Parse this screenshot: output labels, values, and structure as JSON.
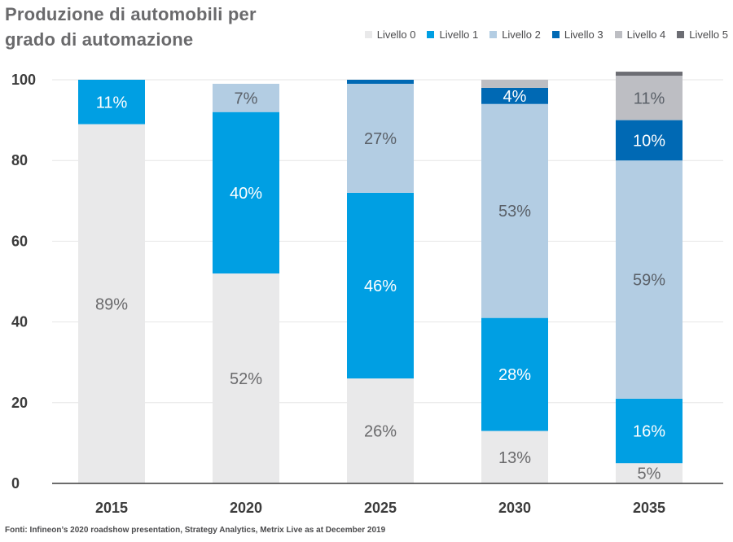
{
  "chart_data": {
    "type": "bar",
    "stacked": true,
    "title": "Produzione di automobili per\ngrado di automazione",
    "categories": [
      "2015",
      "2020",
      "2025",
      "2030",
      "2035"
    ],
    "series": [
      {
        "name": "Livello 0",
        "color": "#e9e9ea",
        "label_color": "#6a6a6c",
        "values": [
          89,
          52,
          26,
          13,
          5
        ]
      },
      {
        "name": "Livello 1",
        "color": "#009fe3",
        "label_color": "#ffffff",
        "values": [
          11,
          40,
          46,
          28,
          16
        ]
      },
      {
        "name": "Livello 2",
        "color": "#b3cde3",
        "label_color": "#5a6068",
        "values": [
          0,
          7,
          27,
          53,
          59
        ]
      },
      {
        "name": "Livello 3",
        "color": "#0069b4",
        "label_color": "#ffffff",
        "values": [
          0,
          0,
          1,
          4,
          10
        ]
      },
      {
        "name": "Livello 4",
        "color": "#bdbec3",
        "label_color": "#5a6068",
        "values": [
          0,
          0,
          0,
          2,
          11
        ]
      },
      {
        "name": "Livello 5",
        "color": "#6c6d73",
        "label_color": "#ffffff",
        "values": [
          0,
          0,
          0,
          0,
          1
        ]
      }
    ],
    "data_labels": [
      [
        "89%",
        "11%",
        "",
        "",
        "",
        ""
      ],
      [
        "52%",
        "40%",
        "7%",
        "",
        "",
        ""
      ],
      [
        "26%",
        "46%",
        "27%",
        "",
        "",
        ""
      ],
      [
        "13%",
        "28%",
        "53%",
        "4%",
        "",
        ""
      ],
      [
        "5%",
        "16%",
        "59%",
        "10%",
        "11%",
        ""
      ]
    ],
    "yticks": [
      0,
      20,
      40,
      60,
      80,
      100
    ],
    "ylim": [
      0,
      100
    ],
    "xlabel": "",
    "ylabel": "",
    "grid": true,
    "legend_position": "top-right"
  },
  "source": "Fonti: Infineon’s 2020 roadshow presentation, Strategy Analytics, Metrix Live as at December 2019"
}
